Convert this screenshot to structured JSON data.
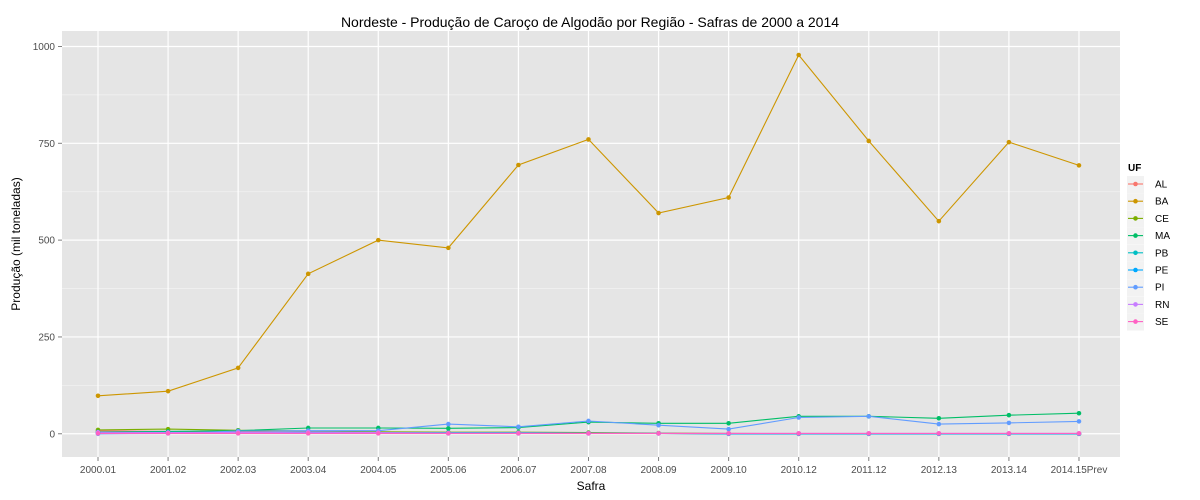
{
  "chart_data": {
    "type": "line",
    "title": "Nordeste  - Produção de Caroço de Algodão por Região - Safras de 2000 a 2014",
    "xlabel": "Safra",
    "ylabel": "Produção (mil toneladas)",
    "categories": [
      "2000.01",
      "2001.02",
      "2002.03",
      "2003.04",
      "2004.05",
      "2005.06",
      "2006.07",
      "2007.08",
      "2008.09",
      "2009.10",
      "2010.12",
      "2011.12",
      "2012.13",
      "2013.14",
      "2014.15Prev"
    ],
    "ylim": [
      -60,
      1040
    ],
    "yticks": [
      0,
      250,
      500,
      750,
      1000
    ],
    "grid": true,
    "legend": {
      "title": "UF",
      "position": "right"
    },
    "series": [
      {
        "name": "AL",
        "color": "#F8766D",
        "values": [
          8,
          6,
          5,
          3,
          3,
          2,
          2,
          2,
          1,
          0,
          0,
          0,
          0,
          0,
          0
        ]
      },
      {
        "name": "BA",
        "color": "#CD9600",
        "values": [
          98,
          110,
          170,
          413,
          500,
          480,
          694,
          760,
          570,
          610,
          978,
          756,
          549,
          753,
          693
        ]
      },
      {
        "name": "CE",
        "color": "#7CAE00",
        "values": [
          10,
          12,
          9,
          7,
          5,
          4,
          4,
          3,
          2,
          1,
          0,
          0,
          0,
          0,
          0
        ]
      },
      {
        "name": "MA",
        "color": "#00BE67",
        "values": [
          5,
          6,
          8,
          15,
          15,
          14,
          16,
          30,
          27,
          27,
          45,
          45,
          40,
          48,
          53
        ]
      },
      {
        "name": "PB",
        "color": "#00BFC4",
        "values": [
          3,
          4,
          3,
          4,
          3,
          3,
          3,
          2,
          1,
          0,
          0,
          0,
          0,
          0,
          0
        ]
      },
      {
        "name": "PE",
        "color": "#00A9FF",
        "values": [
          2,
          2,
          2,
          2,
          2,
          1,
          1,
          1,
          1,
          0,
          0,
          0,
          0,
          0,
          0
        ]
      },
      {
        "name": "PI",
        "color": "#619CFF",
        "values": [
          0,
          1,
          7,
          8,
          8,
          25,
          18,
          33,
          22,
          12,
          42,
          45,
          25,
          28,
          32
        ]
      },
      {
        "name": "RN",
        "color": "#C77CFF",
        "values": [
          4,
          3,
          3,
          4,
          3,
          2,
          2,
          1,
          1,
          1,
          1,
          1,
          1,
          1,
          1
        ]
      },
      {
        "name": "SE",
        "color": "#FF61C3",
        "values": [
          1,
          1,
          1,
          1,
          1,
          1,
          1,
          1,
          1,
          1,
          1,
          1,
          1,
          1,
          1
        ]
      }
    ]
  }
}
